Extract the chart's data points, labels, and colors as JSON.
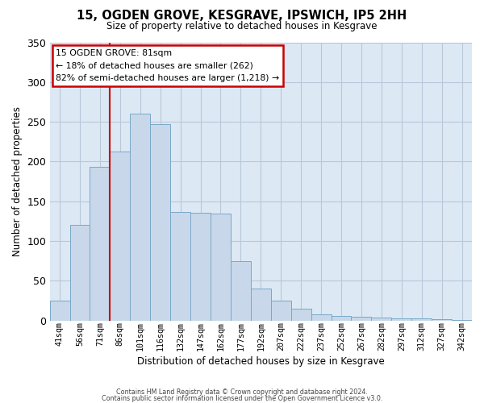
{
  "title": "15, OGDEN GROVE, KESGRAVE, IPSWICH, IP5 2HH",
  "subtitle": "Size of property relative to detached houses in Kesgrave",
  "xlabel": "Distribution of detached houses by size in Kesgrave",
  "ylabel": "Number of detached properties",
  "bar_color": "#c8d8ea",
  "bar_edge_color": "#7aa8c8",
  "background_color": "#dce8f4",
  "grid_color": "#b8c8d8",
  "categories": [
    "41sqm",
    "56sqm",
    "71sqm",
    "86sqm",
    "101sqm",
    "116sqm",
    "132sqm",
    "147sqm",
    "162sqm",
    "177sqm",
    "192sqm",
    "207sqm",
    "222sqm",
    "237sqm",
    "252sqm",
    "267sqm",
    "282sqm",
    "297sqm",
    "312sqm",
    "327sqm",
    "342sqm"
  ],
  "values": [
    25,
    120,
    193,
    213,
    260,
    247,
    137,
    136,
    135,
    75,
    40,
    25,
    15,
    8,
    6,
    5,
    4,
    3,
    3,
    2,
    1
  ],
  "ylim": [
    0,
    350
  ],
  "yticks": [
    0,
    50,
    100,
    150,
    200,
    250,
    300,
    350
  ],
  "vline_index": 2,
  "vline_color": "#cc0000",
  "annotation_title": "15 OGDEN GROVE: 81sqm",
  "annotation_line1": "← 18% of detached houses are smaller (262)",
  "annotation_line2": "82% of semi-detached houses are larger (1,218) →",
  "annotation_box_color": "#ffffff",
  "annotation_box_edge_color": "#cc0000",
  "footer_line1": "Contains HM Land Registry data © Crown copyright and database right 2024.",
  "footer_line2": "Contains public sector information licensed under the Open Government Licence v3.0."
}
